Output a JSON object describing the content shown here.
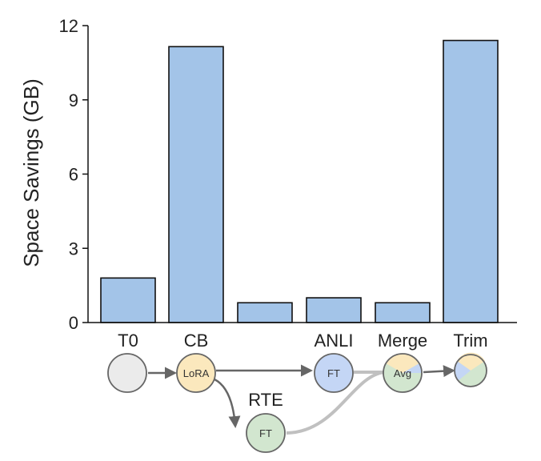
{
  "chart_data": {
    "type": "bar",
    "categories": [
      "T0",
      "CB",
      "",
      "ANLI",
      "Merge",
      "Trim"
    ],
    "values": [
      1.8,
      11.15,
      0.8,
      1.0,
      0.8,
      11.4
    ],
    "ylabel": "Space Savings (GB)",
    "xlabel": "",
    "ylim": [
      0,
      12
    ],
    "yticks": [
      0,
      3,
      6,
      9,
      12
    ],
    "grid": false,
    "bar_color": "#a3c4e8",
    "bar_edge_color": "#111111"
  },
  "diagram": {
    "nodes": [
      {
        "id": "t0",
        "text": "",
        "fill": "#ebebeb"
      },
      {
        "id": "cb",
        "text": "LoRA",
        "fill": "#fbe8bd"
      },
      {
        "id": "anli",
        "text": "FT",
        "fill": "#c4d6f5"
      },
      {
        "id": "merge",
        "text": "Avg",
        "fill": "#d2e6cf"
      },
      {
        "id": "trim",
        "text": "",
        "fill": "#d2e6cf"
      },
      {
        "id": "rte",
        "text": "FT",
        "fill": "#d2e6cf"
      }
    ],
    "extra_label": "RTE",
    "colors": {
      "blue": "#c4d6f5",
      "yellow": "#fbe8bd",
      "green": "#d2e6cf",
      "arrow": "#666666",
      "merge_line": "#c0c0c0"
    }
  }
}
